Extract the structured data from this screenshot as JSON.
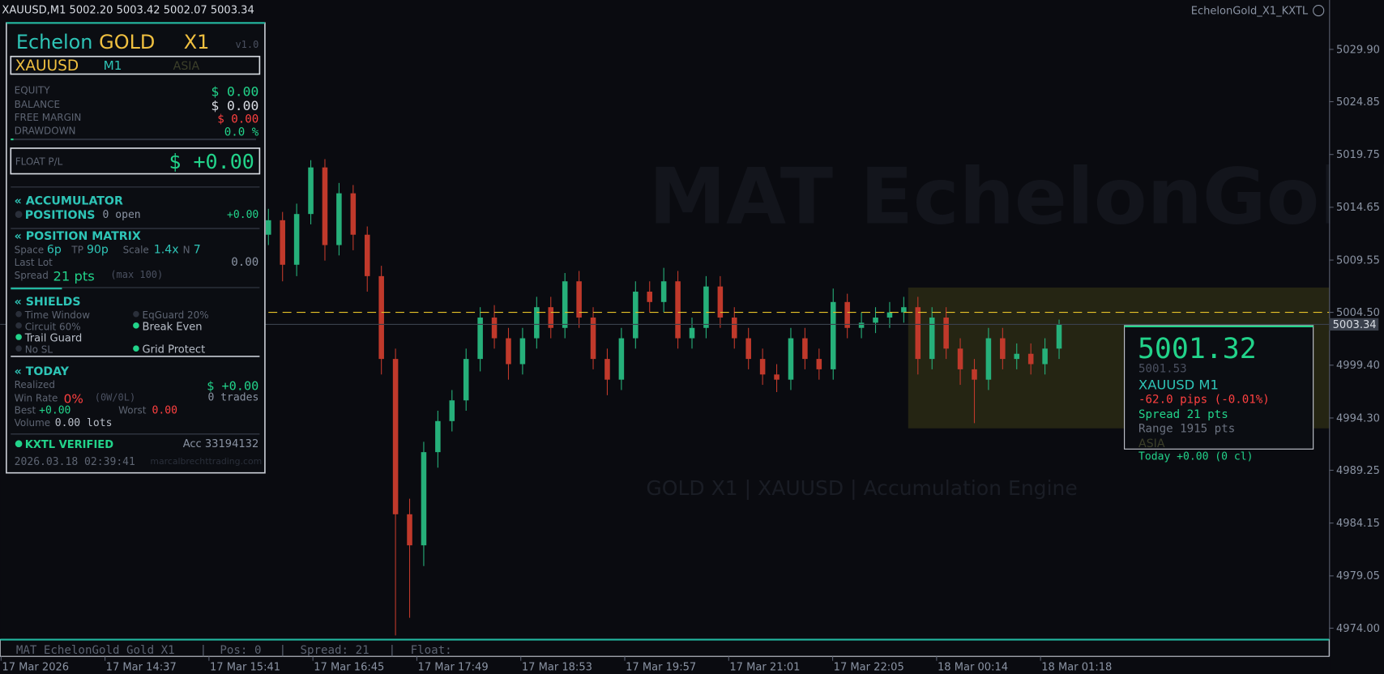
{
  "header": {
    "symbol_quote": "XAUUSD,M1  5002.20 5003.42 5002.07 5003.34",
    "expert_name": "EchelonGold_X1_KXTL"
  },
  "panel": {
    "brand": [
      "Echelon",
      "GOLD",
      "X1"
    ],
    "version": "v1.0",
    "symbol": "XAUUSD",
    "timeframe": "M1",
    "session": "ASIA",
    "account": [
      [
        "EQUITY",
        "$ 0.00"
      ],
      [
        "BALANCE",
        "$ 0.00"
      ],
      [
        "FREE MARGIN",
        "$ 0.00"
      ],
      [
        "DRAWDOWN",
        "0.0 %"
      ]
    ],
    "float_label": "FLOAT P/L",
    "float_value": "$ +0.00",
    "accumulator": {
      "title": "« ACCUMULATOR",
      "label": "POSITIONS",
      "open": "0 open",
      "pnl": "+0.00"
    },
    "matrix": {
      "title": "« POSITION MATRIX",
      "space_label": "Space",
      "space": "6p",
      "tp_label": "TP",
      "tp": "90p",
      "scale_label": "Scale",
      "scale": "1.4x",
      "n_label": "N",
      "n": "7",
      "last_lot_label": "Last Lot",
      "last_lot": "0.00",
      "spread_label": "Spread",
      "spread": "21 pts",
      "spread_max": "(max 100)"
    },
    "shields": {
      "title": "« SHIELDS",
      "items": [
        "Time Window",
        "EqGuard 20%",
        "Circuit 60%",
        "Break Even",
        "Trail Guard",
        "No SL",
        "Grid Protect"
      ]
    },
    "today": {
      "title": "« TODAY",
      "realized_label": "Realized",
      "realized": "$ +0.00",
      "win_label": "Win Rate",
      "win": "0%",
      "wl": "(0W/0L)",
      "trades": "0 trades",
      "best_label": "Best",
      "best": "+0.00",
      "worst_label": "Worst",
      "worst": "0.00",
      "volume_label": "Volume",
      "volume": "0.00 lots"
    },
    "verified": "KXTL VERIFIED",
    "acc": "Acc 33194132",
    "timestamp": "2026.03.18 02:39:41",
    "site": "marcalbrechttrading.com"
  },
  "watermark": {
    "title": "MAT EchelonGold",
    "subtitle": "GOLD X1  |  XAUUSD  |  Accumulation Engine"
  },
  "price_box": {
    "price": "5001.32",
    "bid": "5001.53",
    "symbol": "XAUUSD  M1",
    "change": "-62.0 pips  (-0.01%)",
    "spread": "Spread  21  pts",
    "range": "Range  1915  pts",
    "session": "ASIA",
    "today": "Today +0.00  (0 cl)"
  },
  "status_bar": [
    "MAT EchelonGold Gold X1",
    "Pos: 0",
    "Spread: 21",
    "Float:"
  ],
  "chart_data": {
    "type": "candlestick",
    "ylim": [
      4972.98,
      5034.67
    ],
    "yticks": [
      {
        "value": 5029.9,
        "label": "5029.90"
      },
      5024.85,
      5019.75,
      5014.65,
      5009.55,
      {
        "value": 5004.5,
        "label": "5004.50"
      },
      {
        "value": 4999.4,
        "label": "4999.40"
      },
      {
        "value": 4994.3,
        "label": "4994.30"
      },
      4989.25,
      4984.15,
      4979.05,
      {
        "value": 4974,
        "label": "4974.00"
      }
    ],
    "x_labels": [
      "17 Mar 2026",
      "17 Mar 14:37",
      "17 Mar 15:41",
      "17 Mar 16:45",
      "17 Mar 17:49",
      "17 Mar 18:53",
      "17 Mar 19:57",
      "17 Mar 21:01",
      "17 Mar 22:05",
      "18 Mar 00:14",
      "18 Mar 01:18"
    ],
    "current_price": 5003.34,
    "level": 5004.5,
    "session_box": {
      "top": 5006.9,
      "bottom": 4993.3
    },
    "up_color": "#26b07a",
    "down_color": "#c0392b",
    "open": [
      5012,
      5013.4,
      5009.1,
      5014,
      5018.5,
      5011,
      5016,
      5012,
      5008,
      5000,
      4985,
      4982,
      4991,
      4994,
      4996,
      5000,
      5004,
      5002,
      4999.5,
      5002,
      5005,
      5003,
      5007.5,
      5004,
      5000,
      4998,
      5002,
      5006.5,
      5005.5,
      5007.5,
      5002,
      5003,
      5007,
      5004,
      5002,
      5000,
      4998.5,
      4998,
      5002,
      5000,
      4999,
      5005.5,
      5003,
      5003.5,
      5004,
      5004.5,
      5005,
      5000,
      5004,
      5001,
      4999,
      4998,
      5002,
      5000,
      5000.5,
      4999.5,
      5001
    ],
    "high": [
      5014.5,
      5014.2,
      5015,
      5019.2,
      5019.3,
      5017,
      5016.8,
      5012.8,
      5009,
      5001,
      4986.5,
      4992,
      4995,
      4997,
      5001,
      5005,
      5005.2,
      5003,
      5003,
      5006,
      5006,
      5008.3,
      5008.5,
      5005,
      5001,
      5003,
      5007.5,
      5007.5,
      5008.8,
      5008.5,
      5004,
      5008,
      5008,
      5005,
      5003,
      5001,
      4999.5,
      5003,
      5003,
      5001,
      5006.8,
      5006.3,
      5004.5,
      5005,
      5005.5,
      5006,
      5006,
      5005,
      5005,
      5002,
      5000,
      5003,
      5003,
      5001.5,
      5001.5,
      5002,
      5003.8
    ],
    "low": [
      5011,
      5007.5,
      5008,
      5013,
      5009.5,
      5010,
      5010.5,
      5006.5,
      4998.5,
      4973.3,
      4975,
      4980,
      4989.5,
      4993,
      4995,
      4998.8,
      5001,
      4998,
      4998.5,
      5001,
      5002,
      5002,
      5003,
      4999,
      4996.5,
      4997,
      5001,
      5004.5,
      5004.5,
      5001,
      5001,
      5002,
      5003,
      5001,
      4999,
      4997.5,
      4996.8,
      4997,
      4999,
      4998,
      4998,
      5002,
      5002,
      5002.5,
      5003,
      5003.5,
      4998.5,
      4999,
      5000,
      4997.5,
      4993.8,
      4997,
      4999,
      4999,
      4998.5,
      4998.5,
      5000
    ],
    "close": [
      5013.4,
      5009.1,
      5014,
      5018.5,
      5011,
      5016,
      5012,
      5008,
      5000,
      4985,
      4982,
      4991,
      4994,
      4996,
      5000,
      5004,
      5002,
      4999.5,
      5002,
      5005,
      5003,
      5007.5,
      5004,
      5000,
      4998,
      5002,
      5006.5,
      5005.5,
      5007.5,
      5002,
      5003,
      5007,
      5004,
      5002,
      5000,
      4998.5,
      4998,
      5002,
      5000,
      4999,
      5005.5,
      5003,
      5003.5,
      5004,
      5004.5,
      5005,
      5000,
      5004,
      5001,
      4999,
      4998,
      5002,
      5000,
      5000.5,
      4999.5,
      5001,
      5003.3
    ]
  }
}
